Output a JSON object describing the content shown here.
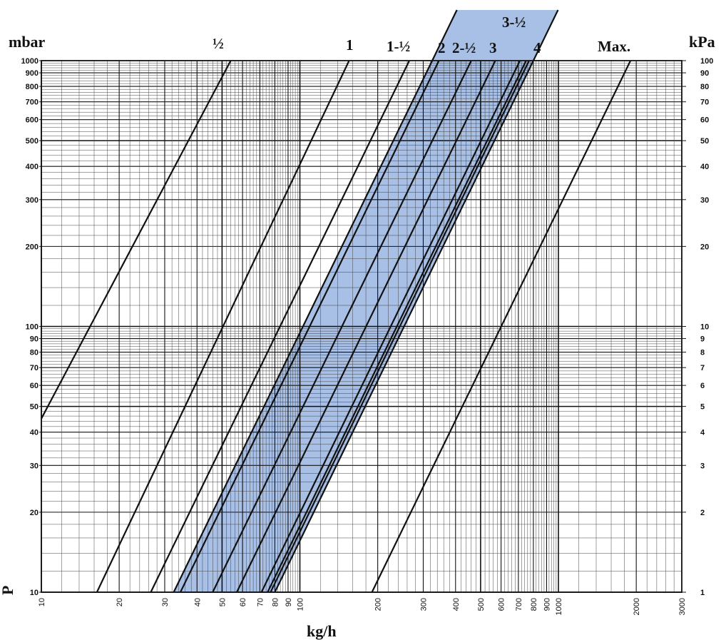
{
  "chart_data": {
    "type": "line",
    "title": "",
    "xlabel": "kg/h",
    "ylabel_left": "mbar",
    "ylabel_right": "kPa",
    "ylabel_side": "P",
    "x_scale": "log",
    "y_scale": "log",
    "xlim": [
      10,
      3000
    ],
    "ylim": [
      10,
      1000
    ],
    "grid": true,
    "x_ticks": [
      "10",
      "20",
      "30",
      "40",
      "50",
      "60",
      "70",
      "80",
      "90",
      "100",
      "200",
      "300",
      "400",
      "500",
      "600",
      "700",
      "800",
      "900",
      "1000",
      "2000",
      "3000"
    ],
    "y_ticks_left": [
      "10",
      "20",
      "30",
      "40",
      "50",
      "60",
      "70",
      "80",
      "90",
      "100",
      "200",
      "300",
      "400",
      "500",
      "600",
      "700",
      "800",
      "900",
      "1000"
    ],
    "y_ticks_right": [
      "1",
      "2",
      "3",
      "4",
      "5",
      "6",
      "7",
      "8",
      "9",
      "10",
      "20",
      "30",
      "40",
      "50",
      "60",
      "70",
      "80",
      "90",
      "100"
    ],
    "shaded_band": {
      "color": "#a8bfe6",
      "from_series": "2",
      "to_series": "4"
    },
    "series": [
      {
        "name": "½",
        "x": [
          10,
          54
        ],
        "y": [
          45,
          1000
        ]
      },
      {
        "name": "1",
        "x": [
          16.4,
          155
        ],
        "y": [
          10,
          1000
        ]
      },
      {
        "name": "1-½",
        "x": [
          26.5,
          265
        ],
        "y": [
          10,
          1000
        ]
      },
      {
        "name": "2",
        "x": [
          32.5,
          325
        ],
        "y": [
          10,
          1000
        ]
      },
      {
        "name": "",
        "x": [
          34.5,
          345
        ],
        "y": [
          10,
          1000
        ]
      },
      {
        "name": "2-½",
        "x": [
          46,
          460
        ],
        "y": [
          10,
          1000
        ]
      },
      {
        "name": "3",
        "x": [
          57,
          570
        ],
        "y": [
          10,
          1000
        ]
      },
      {
        "name": "",
        "x": [
          71,
          710
        ],
        "y": [
          10,
          1000
        ]
      },
      {
        "name": "3-½",
        "x": [
          75,
          750
        ],
        "y": [
          10,
          1000
        ]
      },
      {
        "name": "",
        "x": [
          77,
          770
        ],
        "y": [
          10,
          1000
        ]
      },
      {
        "name": "4",
        "x": [
          80,
          800
        ],
        "y": [
          10,
          1000
        ]
      },
      {
        "name": "Max.",
        "x": [
          190,
          1900
        ],
        "y": [
          10,
          1000
        ]
      }
    ]
  }
}
